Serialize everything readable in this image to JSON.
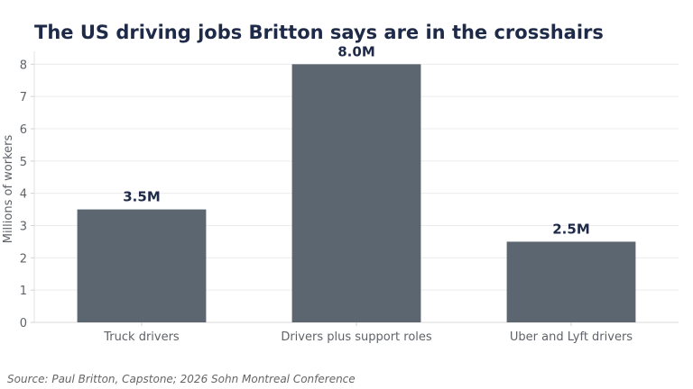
{
  "title": "The US driving jobs Britton says are in the crosshairs",
  "source": "Source: Paul Britton, Capstone; 2026 Sohn Montreal Conference",
  "colors": {
    "bar": "#5c6670",
    "title": "#1e2a47",
    "grid": "#ececec",
    "text": "#5f6368"
  },
  "chart_data": {
    "type": "bar",
    "title": "The US driving jobs Britton says are in the crosshairs",
    "categories": [
      "Truck drivers",
      "Drivers plus support roles",
      "Uber and Lyft drivers"
    ],
    "values": [
      3.5,
      8.0,
      2.5
    ],
    "value_labels": [
      "3.5M",
      "8.0M",
      "2.5M"
    ],
    "xlabel": "",
    "ylabel": "Millions of workers",
    "ylim": [
      0,
      8.4
    ],
    "yticks": [
      0,
      1,
      2,
      3,
      4,
      5,
      6,
      7,
      8
    ],
    "grid": true,
    "legend": "none"
  }
}
